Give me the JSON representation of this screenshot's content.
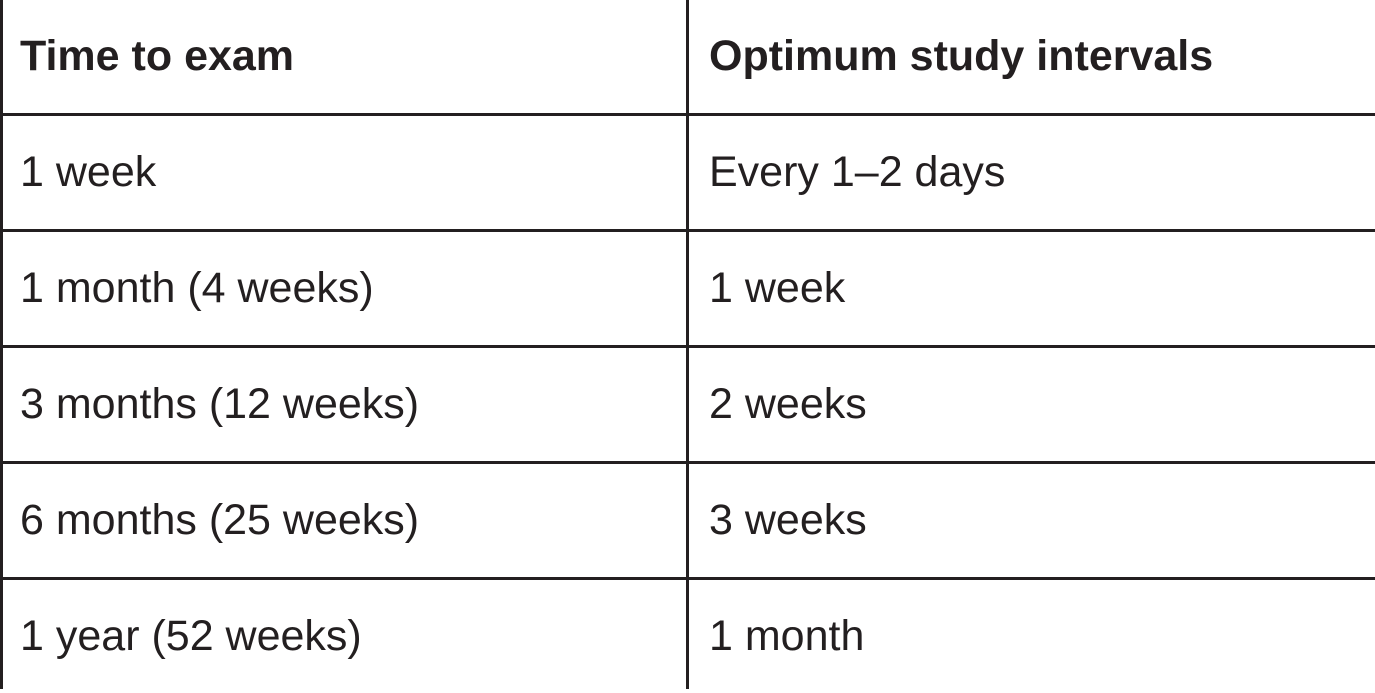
{
  "table": {
    "headers": [
      "Time to exam",
      "Optimum study intervals"
    ],
    "rows": [
      [
        "1 week",
        "Every 1–2 days"
      ],
      [
        "1 month (4 weeks)",
        "1 week"
      ],
      [
        "3 months (12 weeks)",
        "2 weeks"
      ],
      [
        "6 months (25 weeks)",
        "3 weeks"
      ],
      [
        "1 year (52 weeks)",
        "1 month"
      ]
    ],
    "line_color": "#231f20",
    "text_color": "#231f20"
  }
}
